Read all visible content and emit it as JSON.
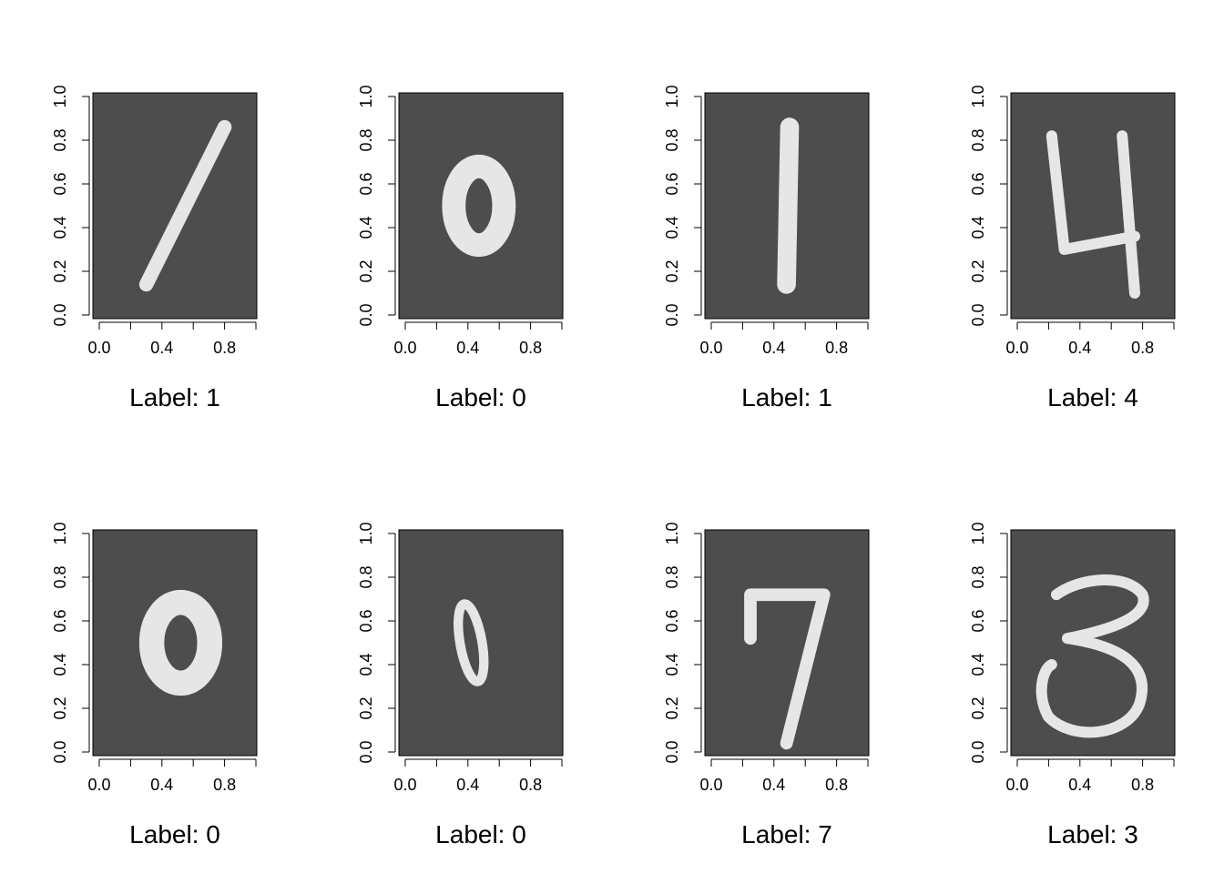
{
  "chart_data": [
    {
      "type": "heatmap",
      "xlabel": "Label: 1",
      "label_value": 1,
      "xlim": [
        0,
        1
      ],
      "ylim": [
        0,
        1
      ],
      "xticks": [
        "0.0",
        "0.4",
        "0.8"
      ],
      "yticks": [
        "0.0",
        "0.2",
        "0.4",
        "0.6",
        "0.8",
        "1.0"
      ],
      "strokes": [
        [
          [
            0.8,
            0.86
          ],
          [
            0.3,
            0.14
          ]
        ]
      ],
      "stroke_width": 0.09
    },
    {
      "type": "heatmap",
      "xlabel": "Label: 0",
      "label_value": 0,
      "xlim": [
        0,
        1
      ],
      "ylim": [
        0,
        1
      ],
      "xticks": [
        "0.0",
        "0.4",
        "0.8"
      ],
      "yticks": [
        "0.0",
        "0.2",
        "0.4",
        "0.6",
        "0.8",
        "1.0"
      ],
      "ellipses": [
        [
          0.47,
          0.5,
          0.32,
          0.36
        ]
      ],
      "stroke_width": 0.15
    },
    {
      "type": "heatmap",
      "xlabel": "Label: 1",
      "label_value": 1,
      "xlim": [
        0,
        1
      ],
      "ylim": [
        0,
        1
      ],
      "xticks": [
        "0.0",
        "0.4",
        "0.8"
      ],
      "yticks": [
        "0.0",
        "0.2",
        "0.4",
        "0.6",
        "0.8",
        "1.0"
      ],
      "strokes": [
        [
          [
            0.5,
            0.86
          ],
          [
            0.48,
            0.14
          ]
        ]
      ],
      "stroke_width": 0.12
    },
    {
      "type": "heatmap",
      "xlabel": "Label: 4",
      "label_value": 4,
      "xlim": [
        0,
        1
      ],
      "ylim": [
        0,
        1
      ],
      "xticks": [
        "0.0",
        "0.4",
        "0.8"
      ],
      "yticks": [
        "0.0",
        "0.2",
        "0.4",
        "0.6",
        "0.8",
        "1.0"
      ],
      "strokes": [
        [
          [
            0.22,
            0.82
          ],
          [
            0.3,
            0.3
          ],
          [
            0.75,
            0.36
          ]
        ],
        [
          [
            0.67,
            0.82
          ],
          [
            0.75,
            0.1
          ]
        ]
      ],
      "stroke_width": 0.07
    },
    {
      "type": "heatmap",
      "xlabel": "Label: 0",
      "label_value": 0,
      "xlim": [
        0,
        1
      ],
      "ylim": [
        0,
        1
      ],
      "xticks": [
        "0.0",
        "0.4",
        "0.8"
      ],
      "yticks": [
        "0.0",
        "0.2",
        "0.4",
        "0.6",
        "0.8",
        "1.0"
      ],
      "ellipses": [
        [
          0.52,
          0.5,
          0.37,
          0.37
        ]
      ],
      "stroke_width": 0.16
    },
    {
      "type": "heatmap",
      "xlabel": "Label: 0",
      "label_value": 0,
      "xlim": [
        0,
        1
      ],
      "ylim": [
        0,
        1
      ],
      "xticks": [
        "0.0",
        "0.4",
        "0.8"
      ],
      "yticks": [
        "0.0",
        "0.2",
        "0.4",
        "0.6",
        "0.8",
        "1.0"
      ],
      "ellipses": [
        [
          0.42,
          0.5,
          0.14,
          0.36,
          -10
        ]
      ],
      "stroke_width": 0.06
    },
    {
      "type": "heatmap",
      "xlabel": "Label: 7",
      "label_value": 7,
      "xlim": [
        0,
        1
      ],
      "ylim": [
        0,
        1
      ],
      "xticks": [
        "0.0",
        "0.4",
        "0.8"
      ],
      "yticks": [
        "0.0",
        "0.2",
        "0.4",
        "0.6",
        "0.8",
        "1.0"
      ],
      "strokes": [
        [
          [
            0.25,
            0.52
          ],
          [
            0.25,
            0.72
          ],
          [
            0.72,
            0.72
          ],
          [
            0.48,
            0.04
          ]
        ]
      ],
      "stroke_width": 0.08
    },
    {
      "type": "heatmap",
      "xlabel": "Label: 3",
      "label_value": 3,
      "xlim": [
        0,
        1
      ],
      "ylim": [
        0,
        1
      ],
      "xticks": [
        "0.0",
        "0.4",
        "0.8"
      ],
      "yticks": [
        "0.0",
        "0.2",
        "0.4",
        "0.6",
        "0.8",
        "1.0"
      ],
      "paths": [
        "M0.25,0.72 C0.4,0.8 0.7,0.82 0.8,0.72 C0.85,0.62 0.6,0.56 0.32,0.52 C0.7,0.48 0.85,0.38 0.78,0.22 C0.7,0.07 0.35,0.05 0.2,0.16 C0.12,0.26 0.16,0.38 0.22,0.4"
      ],
      "stroke_width": 0.07
    }
  ],
  "colors": {
    "panel_bg": "#4d4d4d",
    "digit": "#e6e6e6"
  }
}
